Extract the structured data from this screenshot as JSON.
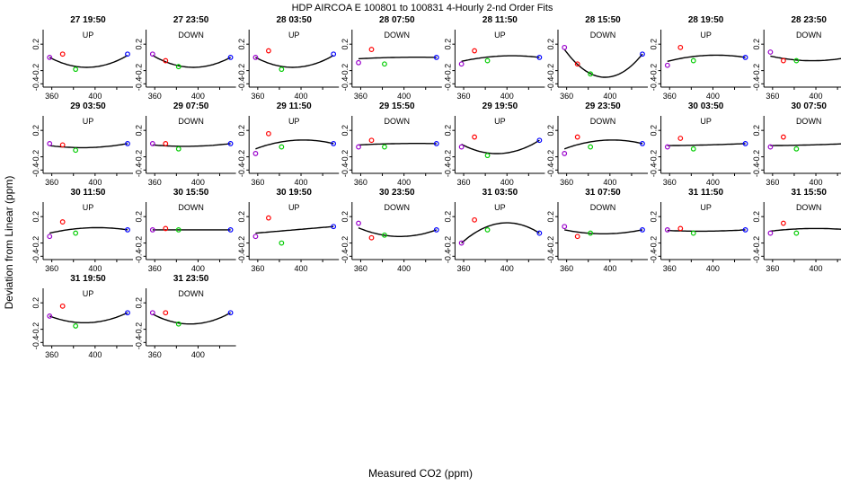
{
  "figure": {
    "title": "HDP   AIRCOA E   100801 to 100831   4-Hourly 2-nd Order Fits",
    "xlabel": "Measured CO2 (ppm)",
    "ylabel": "Deviation from Linear (ppm)",
    "colors": {
      "curve": "#000000",
      "point_low": "#9900cc",
      "point_mid1": "#ff0000",
      "point_mid2": "#00cc00",
      "point_high": "#0000ff"
    }
  },
  "chart_data": {
    "type": "scatter",
    "xlim": [
      352,
      435
    ],
    "ylim": [
      -0.45,
      0.42
    ],
    "xticks": [
      360,
      400
    ],
    "yticks": [
      -0.4,
      -0.2,
      0.2
    ],
    "grid": false,
    "legend": "none",
    "standard_x": [
      358,
      370,
      382,
      430
    ],
    "panels": [
      {
        "title": "27 19:50",
        "dir": "UP",
        "points": [
          0.0,
          0.05,
          -0.18,
          0.05
        ],
        "curve": [
          0.0,
          -0.15,
          0.03
        ]
      },
      {
        "title": "27 23:50",
        "dir": "DOWN",
        "points": [
          0.05,
          -0.05,
          -0.14,
          0.0
        ],
        "curve": [
          0.03,
          -0.15,
          0.0
        ]
      },
      {
        "title": "28 03:50",
        "dir": "UP",
        "points": [
          0.0,
          0.1,
          -0.18,
          0.05
        ],
        "curve": [
          0.0,
          -0.15,
          0.03
        ]
      },
      {
        "title": "28 07:50",
        "dir": "DOWN",
        "points": [
          -0.08,
          0.12,
          -0.1,
          0.0
        ],
        "curve": [
          -0.02,
          0.0,
          0.0
        ]
      },
      {
        "title": "28 11:50",
        "dir": "UP",
        "points": [
          -0.1,
          0.1,
          -0.05,
          0.0
        ],
        "curve": [
          -0.06,
          0.02,
          0.0
        ]
      },
      {
        "title": "28 15:50",
        "dir": "DOWN",
        "points": [
          0.15,
          -0.1,
          -0.25,
          0.05
        ],
        "curve": [
          0.12,
          -0.3,
          0.05
        ]
      },
      {
        "title": "28 19:50",
        "dir": "UP",
        "points": [
          -0.12,
          0.15,
          -0.05,
          0.0
        ],
        "curve": [
          -0.06,
          0.03,
          0.0
        ]
      },
      {
        "title": "28 23:50",
        "dir": "DOWN",
        "points": [
          0.08,
          -0.05,
          -0.05,
          0.0
        ],
        "curve": [
          0.02,
          -0.05,
          0.0
        ]
      },
      {
        "title": "29 03:50",
        "dir": "UP",
        "points": [
          0.0,
          -0.02,
          -0.1,
          0.0
        ],
        "curve": [
          -0.03,
          -0.06,
          0.0
        ]
      },
      {
        "title": "29 07:50",
        "dir": "DOWN",
        "points": [
          0.0,
          0.0,
          -0.08,
          0.0
        ],
        "curve": [
          -0.02,
          -0.04,
          0.0
        ]
      },
      {
        "title": "29 11:50",
        "dir": "UP",
        "points": [
          -0.15,
          0.15,
          -0.05,
          0.0
        ],
        "curve": [
          -0.08,
          0.05,
          0.0
        ]
      },
      {
        "title": "29 15:50",
        "dir": "DOWN",
        "points": [
          -0.05,
          0.05,
          -0.05,
          0.0
        ],
        "curve": [
          -0.02,
          0.0,
          0.0
        ]
      },
      {
        "title": "29 19:50",
        "dir": "UP",
        "points": [
          -0.05,
          0.1,
          -0.18,
          0.05
        ],
        "curve": [
          -0.01,
          -0.15,
          0.05
        ]
      },
      {
        "title": "29 23:50",
        "dir": "DOWN",
        "points": [
          -0.15,
          0.1,
          -0.05,
          0.0
        ],
        "curve": [
          -0.08,
          0.05,
          0.0
        ]
      },
      {
        "title": "30 03:50",
        "dir": "UP",
        "points": [
          -0.05,
          0.08,
          -0.08,
          0.0
        ],
        "curve": [
          -0.03,
          -0.02,
          0.0
        ]
      },
      {
        "title": "30 07:50",
        "dir": "DOWN",
        "points": [
          -0.05,
          0.1,
          -0.08,
          0.0
        ],
        "curve": [
          -0.03,
          -0.02,
          0.0
        ]
      },
      {
        "title": "30 11:50",
        "dir": "UP",
        "points": [
          -0.1,
          0.12,
          -0.05,
          0.0
        ],
        "curve": [
          -0.05,
          0.03,
          0.0
        ]
      },
      {
        "title": "30 15:50",
        "dir": "DOWN",
        "points": [
          0.0,
          0.02,
          0.0,
          0.0
        ],
        "curve": [
          0.0,
          0.0,
          0.0
        ]
      },
      {
        "title": "30 19:50",
        "dir": "UP",
        "points": [
          -0.1,
          0.18,
          -0.2,
          0.05
        ],
        "curve": [
          -0.05,
          0.0,
          0.05
        ]
      },
      {
        "title": "30 23:50",
        "dir": "DOWN",
        "points": [
          0.1,
          -0.12,
          -0.08,
          0.0
        ],
        "curve": [
          0.03,
          -0.1,
          0.0
        ]
      },
      {
        "title": "31 03:50",
        "dir": "UP",
        "points": [
          -0.2,
          0.15,
          0.0,
          -0.05
        ],
        "curve": [
          -0.2,
          0.1,
          -0.05
        ]
      },
      {
        "title": "31 07:50",
        "dir": "DOWN",
        "points": [
          0.05,
          -0.1,
          -0.05,
          0.0
        ],
        "curve": [
          0.0,
          -0.06,
          0.0
        ]
      },
      {
        "title": "31 11:50",
        "dir": "UP",
        "points": [
          0.0,
          0.02,
          -0.05,
          0.0
        ],
        "curve": [
          -0.01,
          -0.02,
          0.0
        ]
      },
      {
        "title": "31 15:50",
        "dir": "DOWN",
        "points": [
          -0.05,
          0.1,
          -0.05,
          0.0
        ],
        "curve": [
          -0.02,
          0.02,
          0.0
        ]
      },
      {
        "title": "31 19:50",
        "dir": "UP",
        "points": [
          0.0,
          0.15,
          -0.15,
          0.05
        ],
        "curve": [
          0.0,
          -0.1,
          0.05
        ]
      },
      {
        "title": "31 23:50",
        "dir": "DOWN",
        "points": [
          0.05,
          0.05,
          -0.12,
          0.05
        ],
        "curve": [
          0.03,
          -0.12,
          0.05
        ]
      }
    ]
  }
}
